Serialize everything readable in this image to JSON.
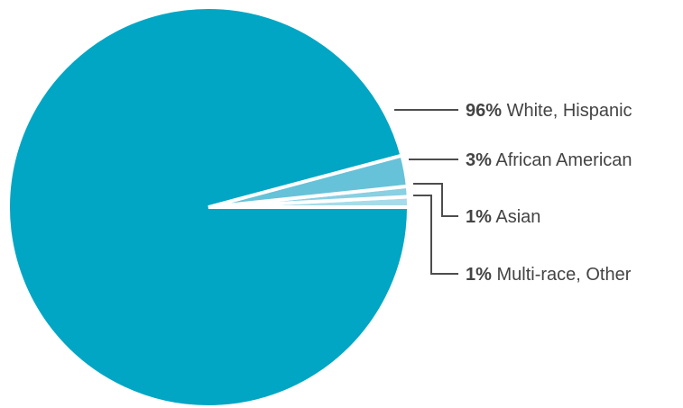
{
  "chart_data": {
    "type": "pie",
    "title": "",
    "slices": [
      {
        "label": "White, Hispanic",
        "value": 96,
        "percent_label": "96%",
        "color": "#00a6c4"
      },
      {
        "label": "African American",
        "value": 3,
        "percent_label": "3%",
        "color": "#66c2d8"
      },
      {
        "label": "Asian",
        "value": 1,
        "percent_label": "1%",
        "color": "#88d0e2"
      },
      {
        "label": "Multi-race, Other",
        "value": 1,
        "percent_label": "1%",
        "color": "#a6dcea"
      }
    ],
    "legend": "none",
    "labels_placement": "right-with-leader-lines"
  },
  "colors": {
    "leader_line": "#4d4d4d",
    "label_text": "#444444",
    "background": "#ffffff"
  }
}
